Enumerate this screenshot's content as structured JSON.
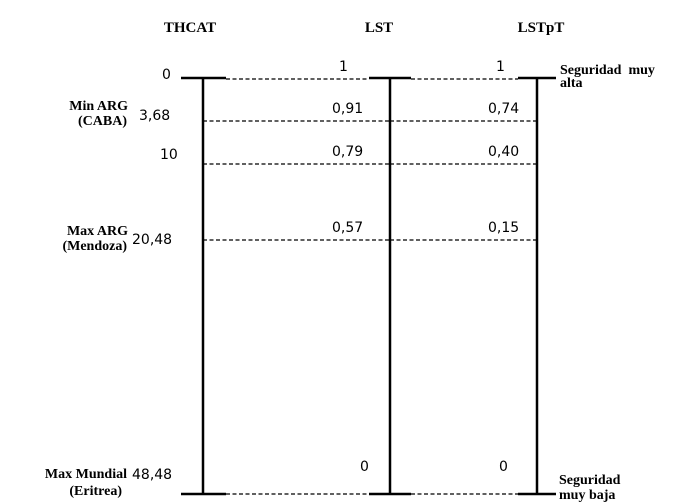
{
  "columns": {
    "thcat": "THCAT",
    "lst": "LST",
    "lstpt": "LSTpT"
  },
  "rows": [
    {
      "key": "top",
      "label_line1": "",
      "label_line2": "",
      "thcat": "0",
      "lst": "1",
      "lstpt": "1"
    },
    {
      "key": "min-arg",
      "label_line1": "Min ARG",
      "label_line2": "(CABA)",
      "thcat": "3,68",
      "lst": "0,91",
      "lstpt": "0,74"
    },
    {
      "key": "ten",
      "label_line1": "",
      "label_line2": "",
      "thcat": "10",
      "lst": "0,79",
      "lstpt": "0,40"
    },
    {
      "key": "max-arg",
      "label_line1": "Max ARG",
      "label_line2": "(Mendoza)",
      "thcat": "20,48",
      "lst": "0,57",
      "lstpt": "0,15"
    },
    {
      "key": "max-mundial",
      "label_line1": "Max Mundial",
      "label_line2": "(Eritrea)",
      "thcat": "48,48",
      "lst": "0",
      "lstpt": "0"
    }
  ],
  "annotations": {
    "top_line1": "Seguridad  muy",
    "top_line2": "alta",
    "bottom_line1": "Seguridad",
    "bottom_line2": "muy baja"
  }
}
